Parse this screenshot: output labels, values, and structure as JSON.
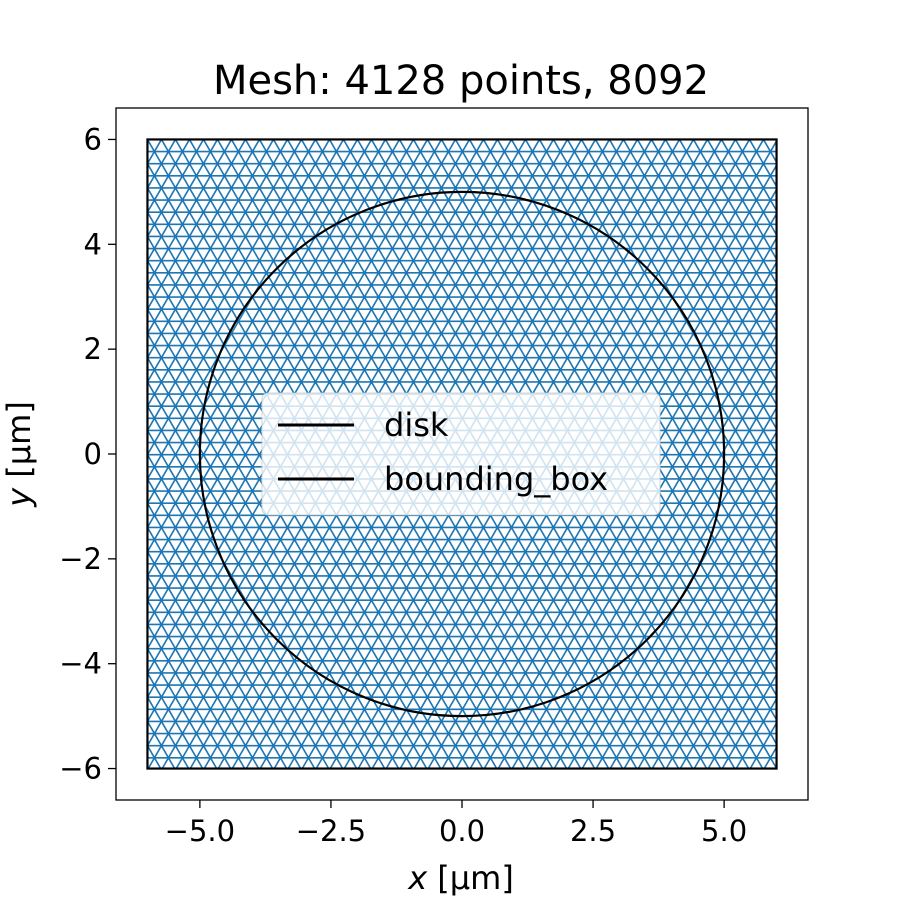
{
  "chart_data": {
    "type": "triangular-mesh",
    "title": "Mesh: 4128 points, 8092",
    "xlabel_var": "x",
    "xlabel_unit": " [µm]",
    "ylabel_var": "y",
    "ylabel_unit": " [µm]",
    "xlim": [
      -6.6,
      6.6
    ],
    "ylim": [
      -6.6,
      6.6
    ],
    "xticks": [
      -5.0,
      -2.5,
      0.0,
      2.5,
      5.0
    ],
    "xtick_labels": [
      "−5.0",
      "−2.5",
      "0.0",
      "2.5",
      "5.0"
    ],
    "yticks": [
      -6,
      -4,
      -2,
      0,
      2,
      4,
      6
    ],
    "ytick_labels": [
      "−6",
      "−4",
      "−2",
      "0",
      "2",
      "4",
      "6"
    ],
    "mesh": {
      "points": 4128,
      "triangles": 8092,
      "color": "#1f77b4"
    },
    "series": [
      {
        "name": "disk",
        "shape": "circle",
        "center": [
          0,
          0
        ],
        "radius": 5,
        "color": "#000000"
      },
      {
        "name": "bounding_box",
        "shape": "rectangle",
        "x": [
          -6,
          6
        ],
        "y": [
          -6,
          6
        ],
        "color": "#000000"
      }
    ],
    "legend_position": "center",
    "grid": false
  }
}
